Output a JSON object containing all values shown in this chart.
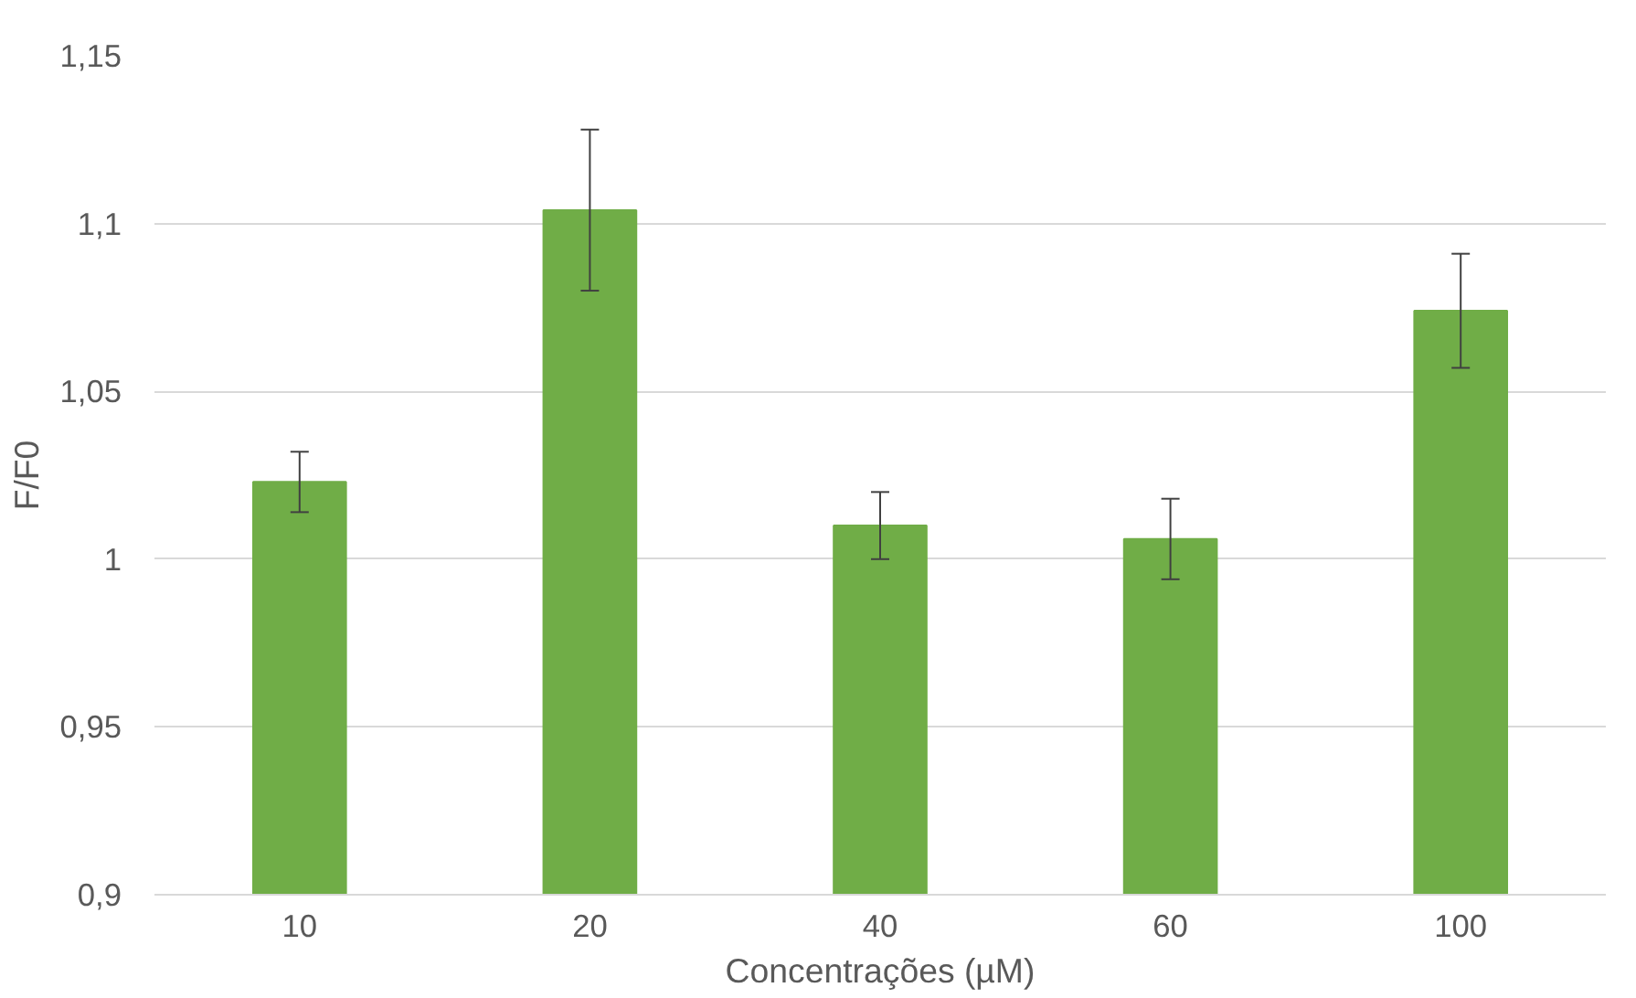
{
  "chart_data": {
    "type": "bar",
    "xlabel": "Concentrações (µM)",
    "ylabel": "F/F0",
    "categories": [
      "10",
      "20",
      "40",
      "60",
      "100"
    ],
    "values": [
      1.023,
      1.104,
      1.01,
      1.006,
      1.074
    ],
    "errors": [
      0.009,
      0.024,
      0.01,
      0.012,
      0.017
    ],
    "color": "#70ad47",
    "ylim": [
      0.9,
      1.15
    ],
    "yticks": [
      {
        "value": 0.9,
        "label": "0,9"
      },
      {
        "value": 0.95,
        "label": "0,95"
      },
      {
        "value": 1,
        "label": "1"
      },
      {
        "value": 1.05,
        "label": "1,05"
      },
      {
        "value": 1.1,
        "label": "1,1"
      },
      {
        "value": 1.15,
        "label": "1,15"
      }
    ],
    "grid": "y"
  }
}
